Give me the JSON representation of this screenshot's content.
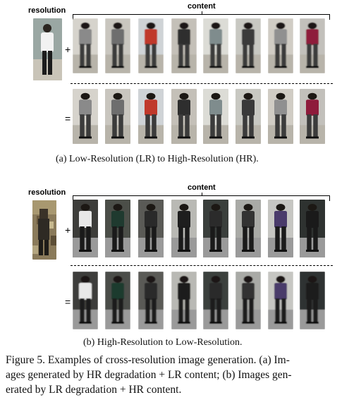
{
  "panel_a": {
    "resolution_label": "resolution",
    "content_label": "content",
    "plus": "+",
    "equals": "=",
    "caption": "(a) Low-Resolution (LR) to High-Resolution (HR)."
  },
  "panel_b": {
    "resolution_label": "resolution",
    "content_label": "content",
    "plus": "+",
    "equals": "=",
    "caption": "(b) High-Resolution to Low-Resolution."
  },
  "figure_caption": [
    "Figure 5. Examples of cross-resolution image generation. (a) Im-",
    "ages generated by HR degradation + LR content; (b) Images gen-",
    "erated by LR degradation + HR content."
  ],
  "colors": {
    "panel_a_people": [
      "#8a8a8a",
      "#6e6e6e",
      "#c0392b",
      "#2e2e2e",
      "#7f8c8d",
      "#3a3a3a",
      "#909090",
      "#8e1b3b"
    ],
    "panel_b_people": [
      "#e8e8e8",
      "#1f3a2f",
      "#2a2a2a",
      "#1e1e1e",
      "#2b2b2b",
      "#333333",
      "#4a3b6b",
      "#1a1a1a"
    ]
  }
}
